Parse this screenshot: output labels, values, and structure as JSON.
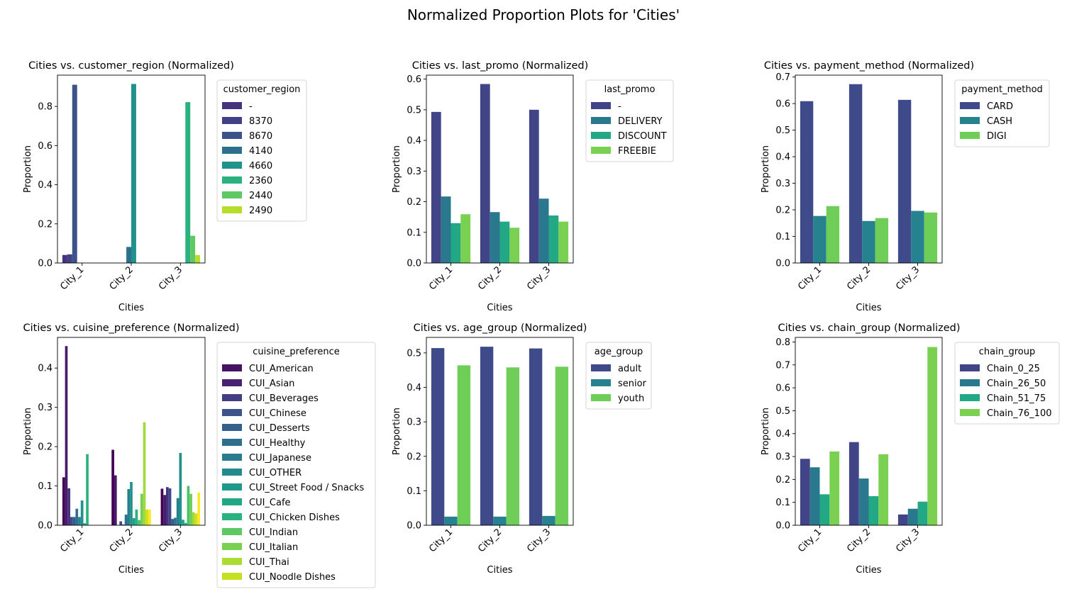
{
  "suptitle": "Normalized Proportion Plots for 'Cities'",
  "palette": {
    "p8": [
      "#46327e",
      "#424086",
      "#3b528b",
      "#2d708e",
      "#21918c",
      "#2bb07f",
      "#5ec962",
      "#b5de2b"
    ],
    "p4": [
      "#414487",
      "#2a788e",
      "#22a884",
      "#7ad151"
    ],
    "p3": [
      "#3e4a89",
      "#26828e",
      "#6ece58"
    ],
    "p15": [
      "#440154",
      "#481b6d",
      "#46327e",
      "#3f4788",
      "#365c8d",
      "#2e6e8e",
      "#277f8e",
      "#21918c",
      "#1fa187",
      "#2db27d",
      "#4ac16d",
      "#71cf57",
      "#a0da39",
      "#d0e11c",
      "#fde725"
    ],
    "p15_legend": [
      "#471164",
      "#482173",
      "#433d84",
      "#3b528b",
      "#355f8d",
      "#2e6e8e",
      "#287c8e",
      "#238a8d",
      "#1f9a8a",
      "#22a785",
      "#2bb07f",
      "#5ec962",
      "#7ad151",
      "#aadc32",
      "#c5e021"
    ],
    "axis_color": "#000000"
  },
  "chart_data": [
    {
      "type": "bar",
      "title": "Cities vs. customer_region (Normalized)",
      "xlabel": "Cities",
      "ylabel": "Proportion",
      "categories": [
        "City_1",
        "City_2",
        "City_3"
      ],
      "ylim": [
        0,
        0.96
      ],
      "yticks": [
        0.0,
        0.2,
        0.4,
        0.6,
        0.8
      ],
      "legend_title": "customer_region",
      "legend_placement": "outside-upper-right",
      "palette": "p8",
      "series": [
        {
          "name": "-",
          "values": [
            0.041,
            0,
            0
          ]
        },
        {
          "name": "8370",
          "values": [
            0.044,
            0,
            0
          ]
        },
        {
          "name": "8670",
          "values": [
            0.911,
            0,
            0
          ]
        },
        {
          "name": "4140",
          "values": [
            0,
            0.082,
            0
          ]
        },
        {
          "name": "4660",
          "values": [
            0,
            0.915,
            0
          ]
        },
        {
          "name": "2360",
          "values": [
            0,
            0,
            0.822
          ]
        },
        {
          "name": "2440",
          "values": [
            0,
            0,
            0.139
          ]
        },
        {
          "name": "2490",
          "values": [
            0,
            0,
            0.041
          ]
        }
      ]
    },
    {
      "type": "bar",
      "title": "Cities vs. last_promo (Normalized)",
      "xlabel": "Cities",
      "ylabel": "Proportion",
      "categories": [
        "City_1",
        "City_2",
        "City_3"
      ],
      "ylim": [
        0,
        0.613
      ],
      "yticks": [
        0.0,
        0.1,
        0.2,
        0.3,
        0.4,
        0.5,
        0.6
      ],
      "legend_title": "last_promo",
      "legend_placement": "outside-upper-right",
      "palette": "p4",
      "series": [
        {
          "name": "-",
          "values": [
            0.493,
            0.584,
            0.5
          ]
        },
        {
          "name": "DELIVERY",
          "values": [
            0.217,
            0.166,
            0.21
          ]
        },
        {
          "name": "DISCOUNT",
          "values": [
            0.13,
            0.135,
            0.155
          ]
        },
        {
          "name": "FREEBIE",
          "values": [
            0.159,
            0.115,
            0.135
          ]
        }
      ]
    },
    {
      "type": "bar",
      "title": "Cities vs. payment_method (Normalized)",
      "xlabel": "Cities",
      "ylabel": "Proportion",
      "categories": [
        "City_1",
        "City_2",
        "City_3"
      ],
      "ylim": [
        0,
        0.707
      ],
      "yticks": [
        0.0,
        0.1,
        0.2,
        0.3,
        0.4,
        0.5,
        0.6,
        0.7
      ],
      "legend_title": "payment_method",
      "legend_placement": "outside-upper-right",
      "palette": "p3",
      "series": [
        {
          "name": "CARD",
          "values": [
            0.609,
            0.673,
            0.614
          ]
        },
        {
          "name": "CASH",
          "values": [
            0.177,
            0.158,
            0.196
          ]
        },
        {
          "name": "DIGI",
          "values": [
            0.214,
            0.169,
            0.19
          ]
        }
      ]
    },
    {
      "type": "bar",
      "title": "Cities vs. cuisine_preference (Normalized)",
      "xlabel": "Cities",
      "ylabel": "Proportion",
      "categories": [
        "City_1",
        "City_2",
        "City_3"
      ],
      "ylim": [
        0,
        0.478
      ],
      "yticks": [
        0.0,
        0.1,
        0.2,
        0.3,
        0.4
      ],
      "legend_title": "cuisine_preference",
      "legend_placement": "outside-upper-right",
      "palette": "p15",
      "legend_palette": "p15_legend",
      "series": [
        {
          "name": "CUI_American",
          "values": [
            0.122,
            0.192,
            0.093
          ]
        },
        {
          "name": "CUI_Asian",
          "values": [
            0.456,
            0.127,
            0.077
          ]
        },
        {
          "name": "CUI_Beverages",
          "values": [
            0.094,
            0.0,
            0.097
          ]
        },
        {
          "name": "CUI_Chinese",
          "values": [
            0.021,
            0.01,
            0.094
          ]
        },
        {
          "name": "CUI_Desserts",
          "values": [
            0.021,
            0.002,
            0.016
          ]
        },
        {
          "name": "CUI_Healthy",
          "values": [
            0.042,
            0.027,
            0.019
          ]
        },
        {
          "name": "CUI_Japanese",
          "values": [
            0.021,
            0.092,
            0.069
          ]
        },
        {
          "name": "CUI_OTHER",
          "values": [
            0.063,
            0.11,
            0.184
          ]
        },
        {
          "name": "CUI_Street Food / Snacks",
          "values": [
            0.005,
            0.018,
            0.014
          ]
        },
        {
          "name": "CUI_Cafe",
          "values": [
            0.181,
            0.04,
            0.006
          ]
        },
        {
          "name": "CUI_Chicken Dishes",
          "values": [
            0.0,
            0.013,
            0.1
          ]
        },
        {
          "name": "CUI_Indian",
          "values": [
            0.0,
            0.08,
            0.08
          ]
        },
        {
          "name": "CUI_Italian",
          "values": [
            0.0,
            0.262,
            0.033
          ]
        },
        {
          "name": "CUI_Thai",
          "values": [
            0.0,
            0.04,
            0.03
          ]
        },
        {
          "name": "CUI_Noodle Dishes",
          "values": [
            0.0,
            0.04,
            0.083
          ]
        }
      ]
    },
    {
      "type": "bar",
      "title": "Cities vs. age_group (Normalized)",
      "xlabel": "Cities",
      "ylabel": "Proportion",
      "categories": [
        "City_1",
        "City_2",
        "City_3"
      ],
      "ylim": [
        0,
        0.545
      ],
      "yticks": [
        0.0,
        0.1,
        0.2,
        0.3,
        0.4,
        0.5
      ],
      "legend_title": "age_group",
      "legend_placement": "outside-upper-right",
      "palette": "p3",
      "series": [
        {
          "name": "adult",
          "values": [
            0.514,
            0.518,
            0.513
          ]
        },
        {
          "name": "senior",
          "values": [
            0.025,
            0.025,
            0.027
          ]
        },
        {
          "name": "youth",
          "values": [
            0.464,
            0.458,
            0.46
          ]
        }
      ]
    },
    {
      "type": "bar",
      "title": "Cities vs. chain_group (Normalized)",
      "xlabel": "Cities",
      "ylabel": "Proportion",
      "categories": [
        "City_1",
        "City_2",
        "City_3"
      ],
      "ylim": [
        0,
        0.82
      ],
      "yticks": [
        0.0,
        0.1,
        0.2,
        0.3,
        0.4,
        0.5,
        0.6,
        0.7,
        0.8
      ],
      "legend_title": "chain_group",
      "legend_placement": "outside-upper-right",
      "palette": "p4",
      "series": [
        {
          "name": "Chain_0_25",
          "values": [
            0.29,
            0.363,
            0.047
          ]
        },
        {
          "name": "Chain_26_50",
          "values": [
            0.253,
            0.204,
            0.072
          ]
        },
        {
          "name": "Chain_51_75",
          "values": [
            0.135,
            0.127,
            0.103
          ]
        },
        {
          "name": "Chain_76_100",
          "values": [
            0.322,
            0.31,
            0.778
          ]
        }
      ]
    }
  ]
}
